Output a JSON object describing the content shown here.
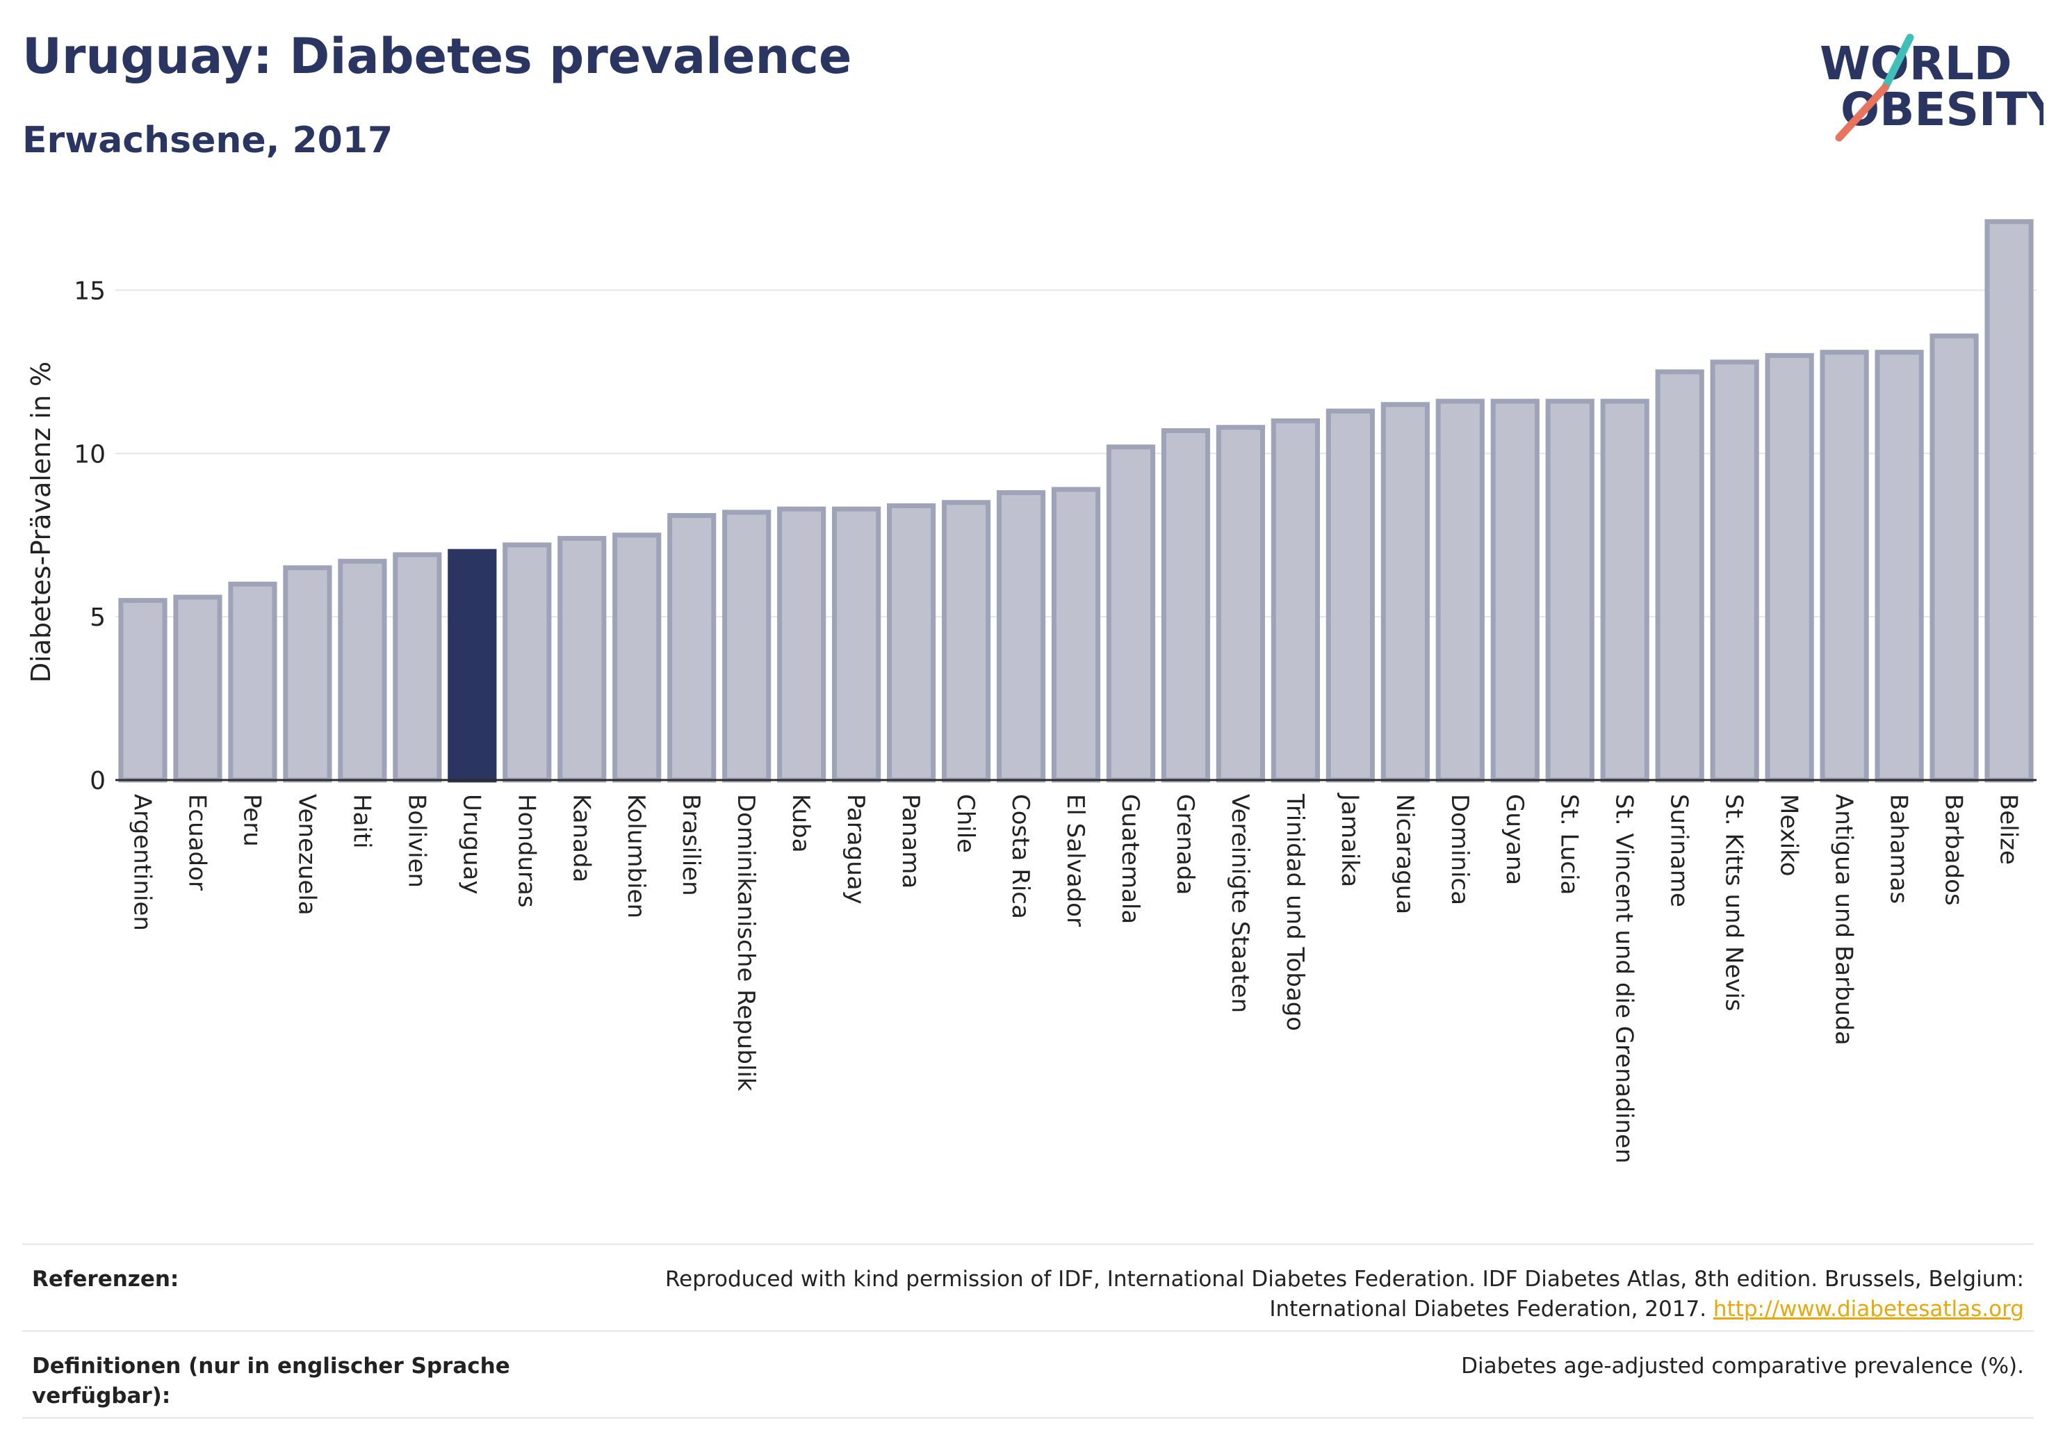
{
  "header": {
    "title": "Uruguay: Diabetes prevalence",
    "subtitle": "Erwachsene, 2017"
  },
  "logo": {
    "line1": "WORLD",
    "line2": "OBESITY"
  },
  "colors": {
    "title": "#2b3562",
    "bar_fill": "#bfc2ce",
    "bar_stroke": "#9ea3b8",
    "highlight_fill": "#2b3562",
    "logo_teal": "#3fbfb8",
    "logo_coral": "#e8745d",
    "link": "#e8a70b"
  },
  "chart_data": {
    "type": "bar",
    "ylabel": "Diabetes-Prävalenz in %",
    "ylim": [
      0,
      17.5
    ],
    "yticks": [
      0,
      5,
      10,
      15
    ],
    "grid": true,
    "highlight": "Uruguay",
    "categories": [
      "Argentinien",
      "Ecuador",
      "Peru",
      "Venezuela",
      "Haiti",
      "Bolivien",
      "Uruguay",
      "Honduras",
      "Kanada",
      "Kolumbien",
      "Brasilien",
      "Dominikanische Republik",
      "Kuba",
      "Paraguay",
      "Panama",
      "Chile",
      "Costa Rica",
      "El Salvador",
      "Guatemala",
      "Grenada",
      "Vereinigte Staaten",
      "Trinidad und Tobago",
      "Jamaika",
      "Nicaragua",
      "Dominica",
      "Guyana",
      "St. Lucia",
      "St. Vincent und die Grenadinen",
      "Suriname",
      "St. Kitts und Nevis",
      "Mexiko",
      "Antigua und Barbuda",
      "Bahamas",
      "Barbados",
      "Belize"
    ],
    "values": [
      5.5,
      5.6,
      6.0,
      6.5,
      6.7,
      6.9,
      7.0,
      7.2,
      7.4,
      7.5,
      8.1,
      8.2,
      8.3,
      8.3,
      8.4,
      8.5,
      8.8,
      8.9,
      10.2,
      10.7,
      10.8,
      11.0,
      11.3,
      11.5,
      11.6,
      11.6,
      11.6,
      11.6,
      12.5,
      12.8,
      13.0,
      13.1,
      13.1,
      13.6,
      17.1
    ]
  },
  "footer": {
    "references_label": "Referenzen:",
    "references_text": "Reproduced with kind permission of IDF, International Diabetes Federation. IDF Diabetes Atlas, 8th edition. Brussels, Belgium: International Diabetes Federation, 2017.",
    "references_link": "http://www.diabetesatlas.org",
    "definitions_label": "Definitionen (nur in englischer Sprache verfügbar):",
    "definitions_text": "Diabetes age-adjusted comparative prevalence (%)."
  }
}
